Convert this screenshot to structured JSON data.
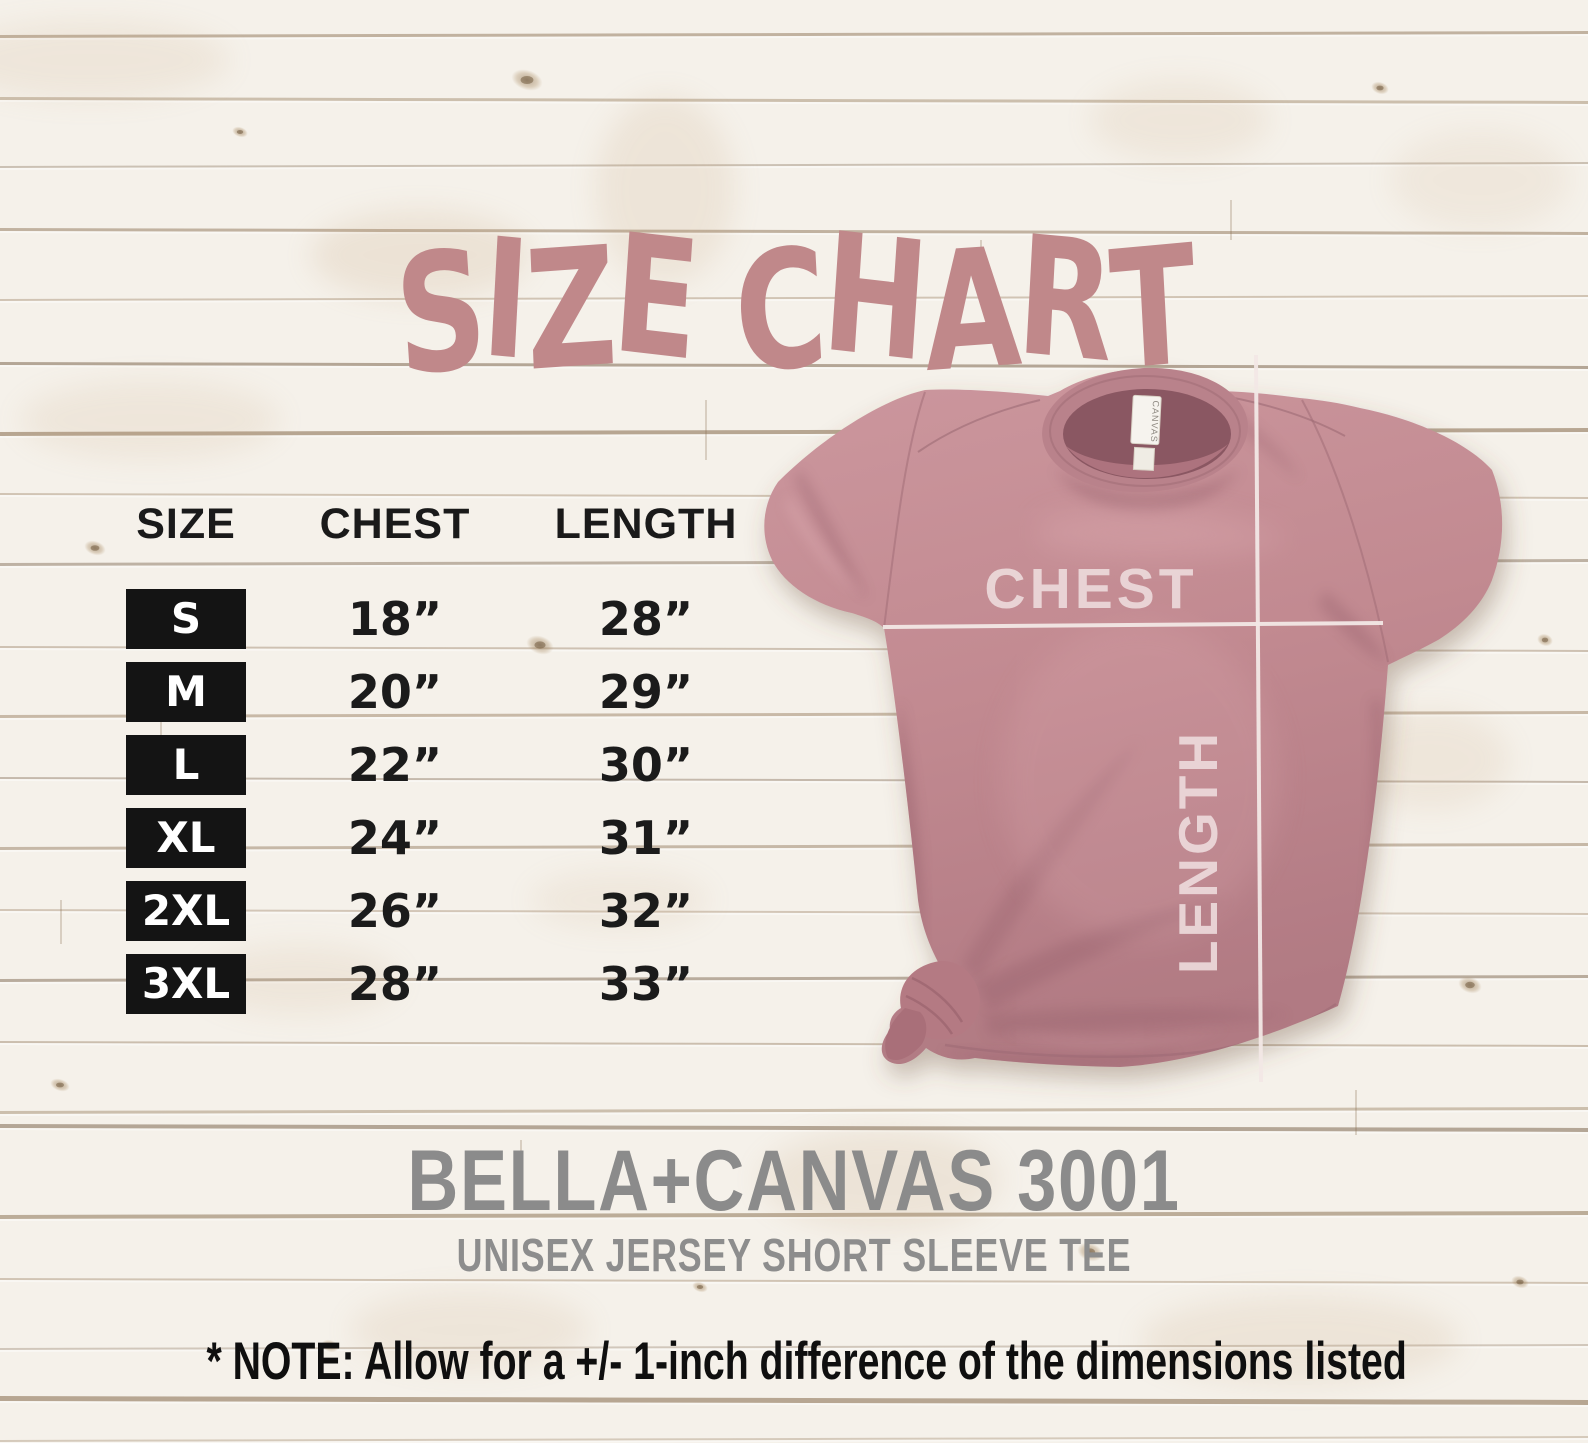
{
  "title": "SIZE CHART",
  "size_table": {
    "headers": [
      "SIZE",
      "CHEST",
      "LENGTH"
    ],
    "rows": [
      {
        "size": "S",
        "chest": "18”",
        "length": "28”"
      },
      {
        "size": "M",
        "chest": "20”",
        "length": "29”"
      },
      {
        "size": "L",
        "chest": "22”",
        "length": "30”"
      },
      {
        "size": "XL",
        "chest": "24”",
        "length": "31”"
      },
      {
        "size": "2XL",
        "chest": "26”",
        "length": "32”"
      },
      {
        "size": "3XL",
        "chest": "28”",
        "length": "33”"
      }
    ]
  },
  "shirt_overlay": {
    "chest_label": "CHEST",
    "length_label": "LENGTH",
    "neck_tag": "CANVAS"
  },
  "product": {
    "name": "BELLA+CANVAS 3001",
    "subtitle": "UNISEX JERSEY SHORT SLEEVE TEE"
  },
  "note": "* NOTE: Allow for a +/- 1-inch difference of the dimensions listed",
  "colors": {
    "title_text": "#c0888a",
    "shirt_main": "#c28a91",
    "shirt_shadow": "#8f5a66",
    "overlay_lines": "#f3e8e6",
    "badge_bg": "#141414",
    "badge_text": "#ffffff",
    "table_text": "#1a1a1a",
    "product_text": "#8b8b8b",
    "note_text": "#0f0f0f",
    "wood_base": "#f5f1ea",
    "wood_line": "#8d7456"
  },
  "chart_data": {
    "type": "table",
    "title": "SIZE CHART",
    "columns": [
      "SIZE",
      "CHEST",
      "LENGTH"
    ],
    "rows": [
      [
        "S",
        "18”",
        "28”"
      ],
      [
        "M",
        "20”",
        "29”"
      ],
      [
        "L",
        "22”",
        "30”"
      ],
      [
        "XL",
        "24”",
        "31”"
      ],
      [
        "2XL",
        "26”",
        "32”"
      ],
      [
        "3XL",
        "28”",
        "33”"
      ]
    ],
    "units": "inches",
    "tolerance_note": "+/- 1-inch difference of the dimensions listed"
  }
}
